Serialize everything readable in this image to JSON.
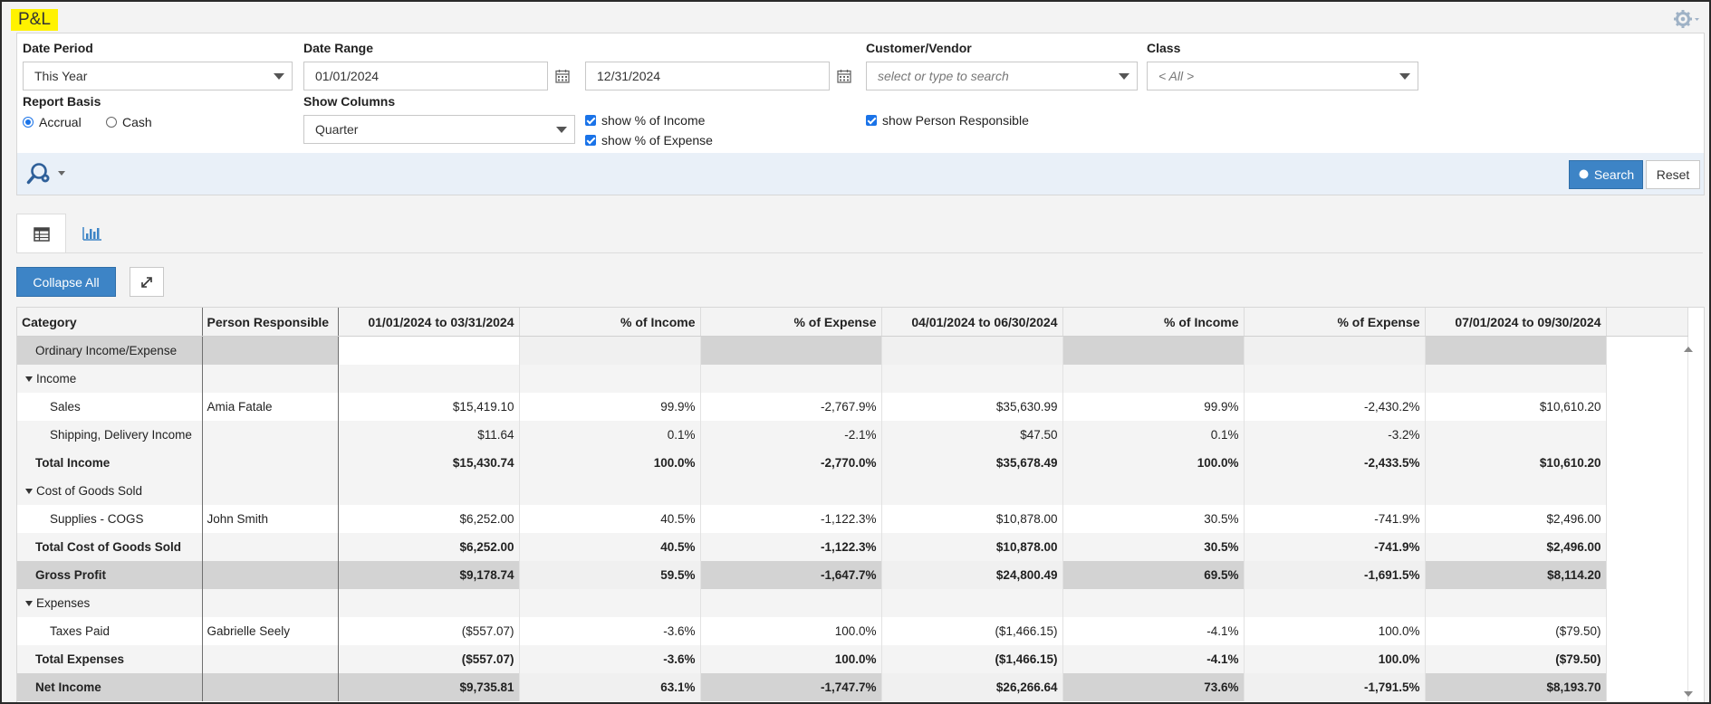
{
  "app": {
    "title": "P&L"
  },
  "filters": {
    "date_period": {
      "label": "Date Period",
      "value": "This Year"
    },
    "date_range": {
      "label": "Date Range",
      "from": "01/01/2024",
      "to": "12/31/2024"
    },
    "customer_vendor": {
      "label": "Customer/Vendor",
      "placeholder": "select or type to search"
    },
    "class": {
      "label": "Class",
      "value": "< All >"
    },
    "report_basis": {
      "label": "Report Basis",
      "options": [
        "Accrual",
        "Cash"
      ],
      "selected": "Accrual"
    },
    "show_columns": {
      "label": "Show Columns",
      "value": "Quarter"
    },
    "checks": {
      "pct_income": {
        "label": "show % of Income",
        "checked": true
      },
      "pct_expense": {
        "label": "show % of Expense",
        "checked": true
      },
      "person_responsible": {
        "label": "show Person Responsible",
        "checked": true
      }
    }
  },
  "actions": {
    "search": "Search",
    "reset": "Reset"
  },
  "toolbar": {
    "collapse_all": "Collapse All"
  },
  "colors": {
    "accent": "#3d84c6",
    "badge": "#fff200",
    "total_row": "#d3d3d3"
  },
  "table": {
    "columns": [
      "Category",
      "Person Responsible",
      "01/01/2024 to 03/31/2024",
      "% of Income",
      "% of Expense",
      "04/01/2024 to 06/30/2024",
      "% of Income",
      "% of Expense",
      "07/01/2024 to 09/30/2024"
    ],
    "rows": [
      [
        "Ordinary Income/Expense",
        "",
        "",
        "",
        "",
        "",
        "",
        "",
        ""
      ],
      [
        "Income",
        "",
        "",
        "",
        "",
        "",
        "",
        "",
        ""
      ],
      [
        "Sales",
        "Amia Fatale",
        "$15,419.10",
        "99.9%",
        "-2,767.9%",
        "$35,630.99",
        "99.9%",
        "-2,430.2%",
        "$10,610.20"
      ],
      [
        "Shipping, Delivery Income",
        "",
        "$11.64",
        "0.1%",
        "-2.1%",
        "$47.50",
        "0.1%",
        "-3.2%",
        ""
      ],
      [
        "Total Income",
        "",
        "$15,430.74",
        "100.0%",
        "-2,770.0%",
        "$35,678.49",
        "100.0%",
        "-2,433.5%",
        "$10,610.20"
      ],
      [
        "Cost of Goods Sold",
        "",
        "",
        "",
        "",
        "",
        "",
        "",
        ""
      ],
      [
        "Supplies - COGS",
        "John Smith",
        "$6,252.00",
        "40.5%",
        "-1,122.3%",
        "$10,878.00",
        "30.5%",
        "-741.9%",
        "$2,496.00"
      ],
      [
        "Total Cost of Goods Sold",
        "",
        "$6,252.00",
        "40.5%",
        "-1,122.3%",
        "$10,878.00",
        "30.5%",
        "-741.9%",
        "$2,496.00"
      ],
      [
        "Gross Profit",
        "",
        "$9,178.74",
        "59.5%",
        "-1,647.7%",
        "$24,800.49",
        "69.5%",
        "-1,691.5%",
        "$8,114.20"
      ],
      [
        "Expenses",
        "",
        "",
        "",
        "",
        "",
        "",
        "",
        ""
      ],
      [
        "Taxes Paid",
        "Gabrielle Seely",
        "($557.07)",
        "-3.6%",
        "100.0%",
        "($1,466.15)",
        "-4.1%",
        "100.0%",
        "($79.50)"
      ],
      [
        "Total Expenses",
        "",
        "($557.07)",
        "-3.6%",
        "100.0%",
        "($1,466.15)",
        "-4.1%",
        "100.0%",
        "($79.50)"
      ],
      [
        "Net Income",
        "",
        "$9,735.81",
        "63.1%",
        "-1,747.7%",
        "$26,266.64",
        "73.6%",
        "-1,791.5%",
        "$8,193.70"
      ]
    ]
  }
}
